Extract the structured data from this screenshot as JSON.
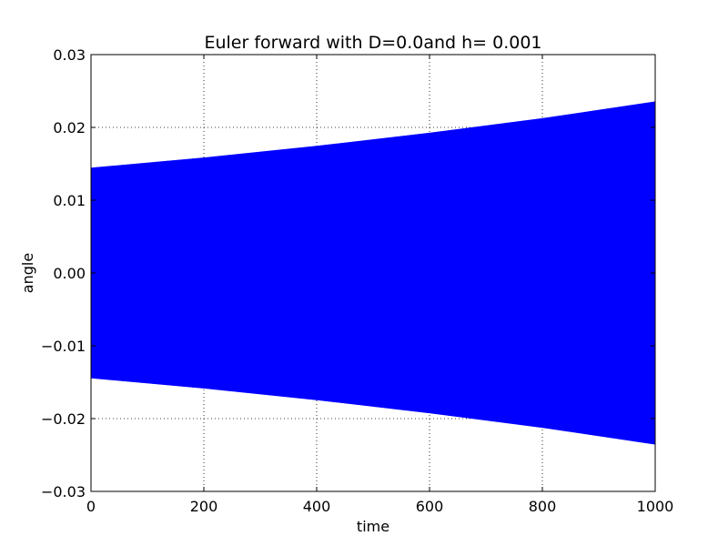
{
  "chart_data": {
    "type": "area",
    "title": "Euler forward with D=0.0and h= 0.001",
    "xlabel": "time",
    "ylabel": "angle",
    "xlim": [
      0,
      1000
    ],
    "ylim": [
      -0.03,
      0.03
    ],
    "x_ticks": [
      0,
      200,
      400,
      600,
      800,
      1000
    ],
    "y_ticks": [
      -0.03,
      -0.02,
      -0.01,
      0.0,
      0.01,
      0.02,
      0.03
    ],
    "x_tick_labels": [
      "0",
      "200",
      "400",
      "600",
      "800",
      "1000"
    ],
    "y_tick_labels": [
      "−0.03",
      "−0.02",
      "−0.01",
      "0.00",
      "0.01",
      "0.02",
      "0.03"
    ],
    "grid": true,
    "series": [
      {
        "color": "#0000ff",
        "description_envelope": "oscillation filling band between +/- amplitude",
        "x": [
          0,
          200,
          400,
          600,
          800,
          1000
        ],
        "upper": [
          0.0144,
          0.0158,
          0.0174,
          0.0192,
          0.0212,
          0.0235
        ],
        "lower": [
          -0.0144,
          -0.0158,
          -0.0174,
          -0.0192,
          -0.0212,
          -0.0235
        ]
      }
    ]
  }
}
